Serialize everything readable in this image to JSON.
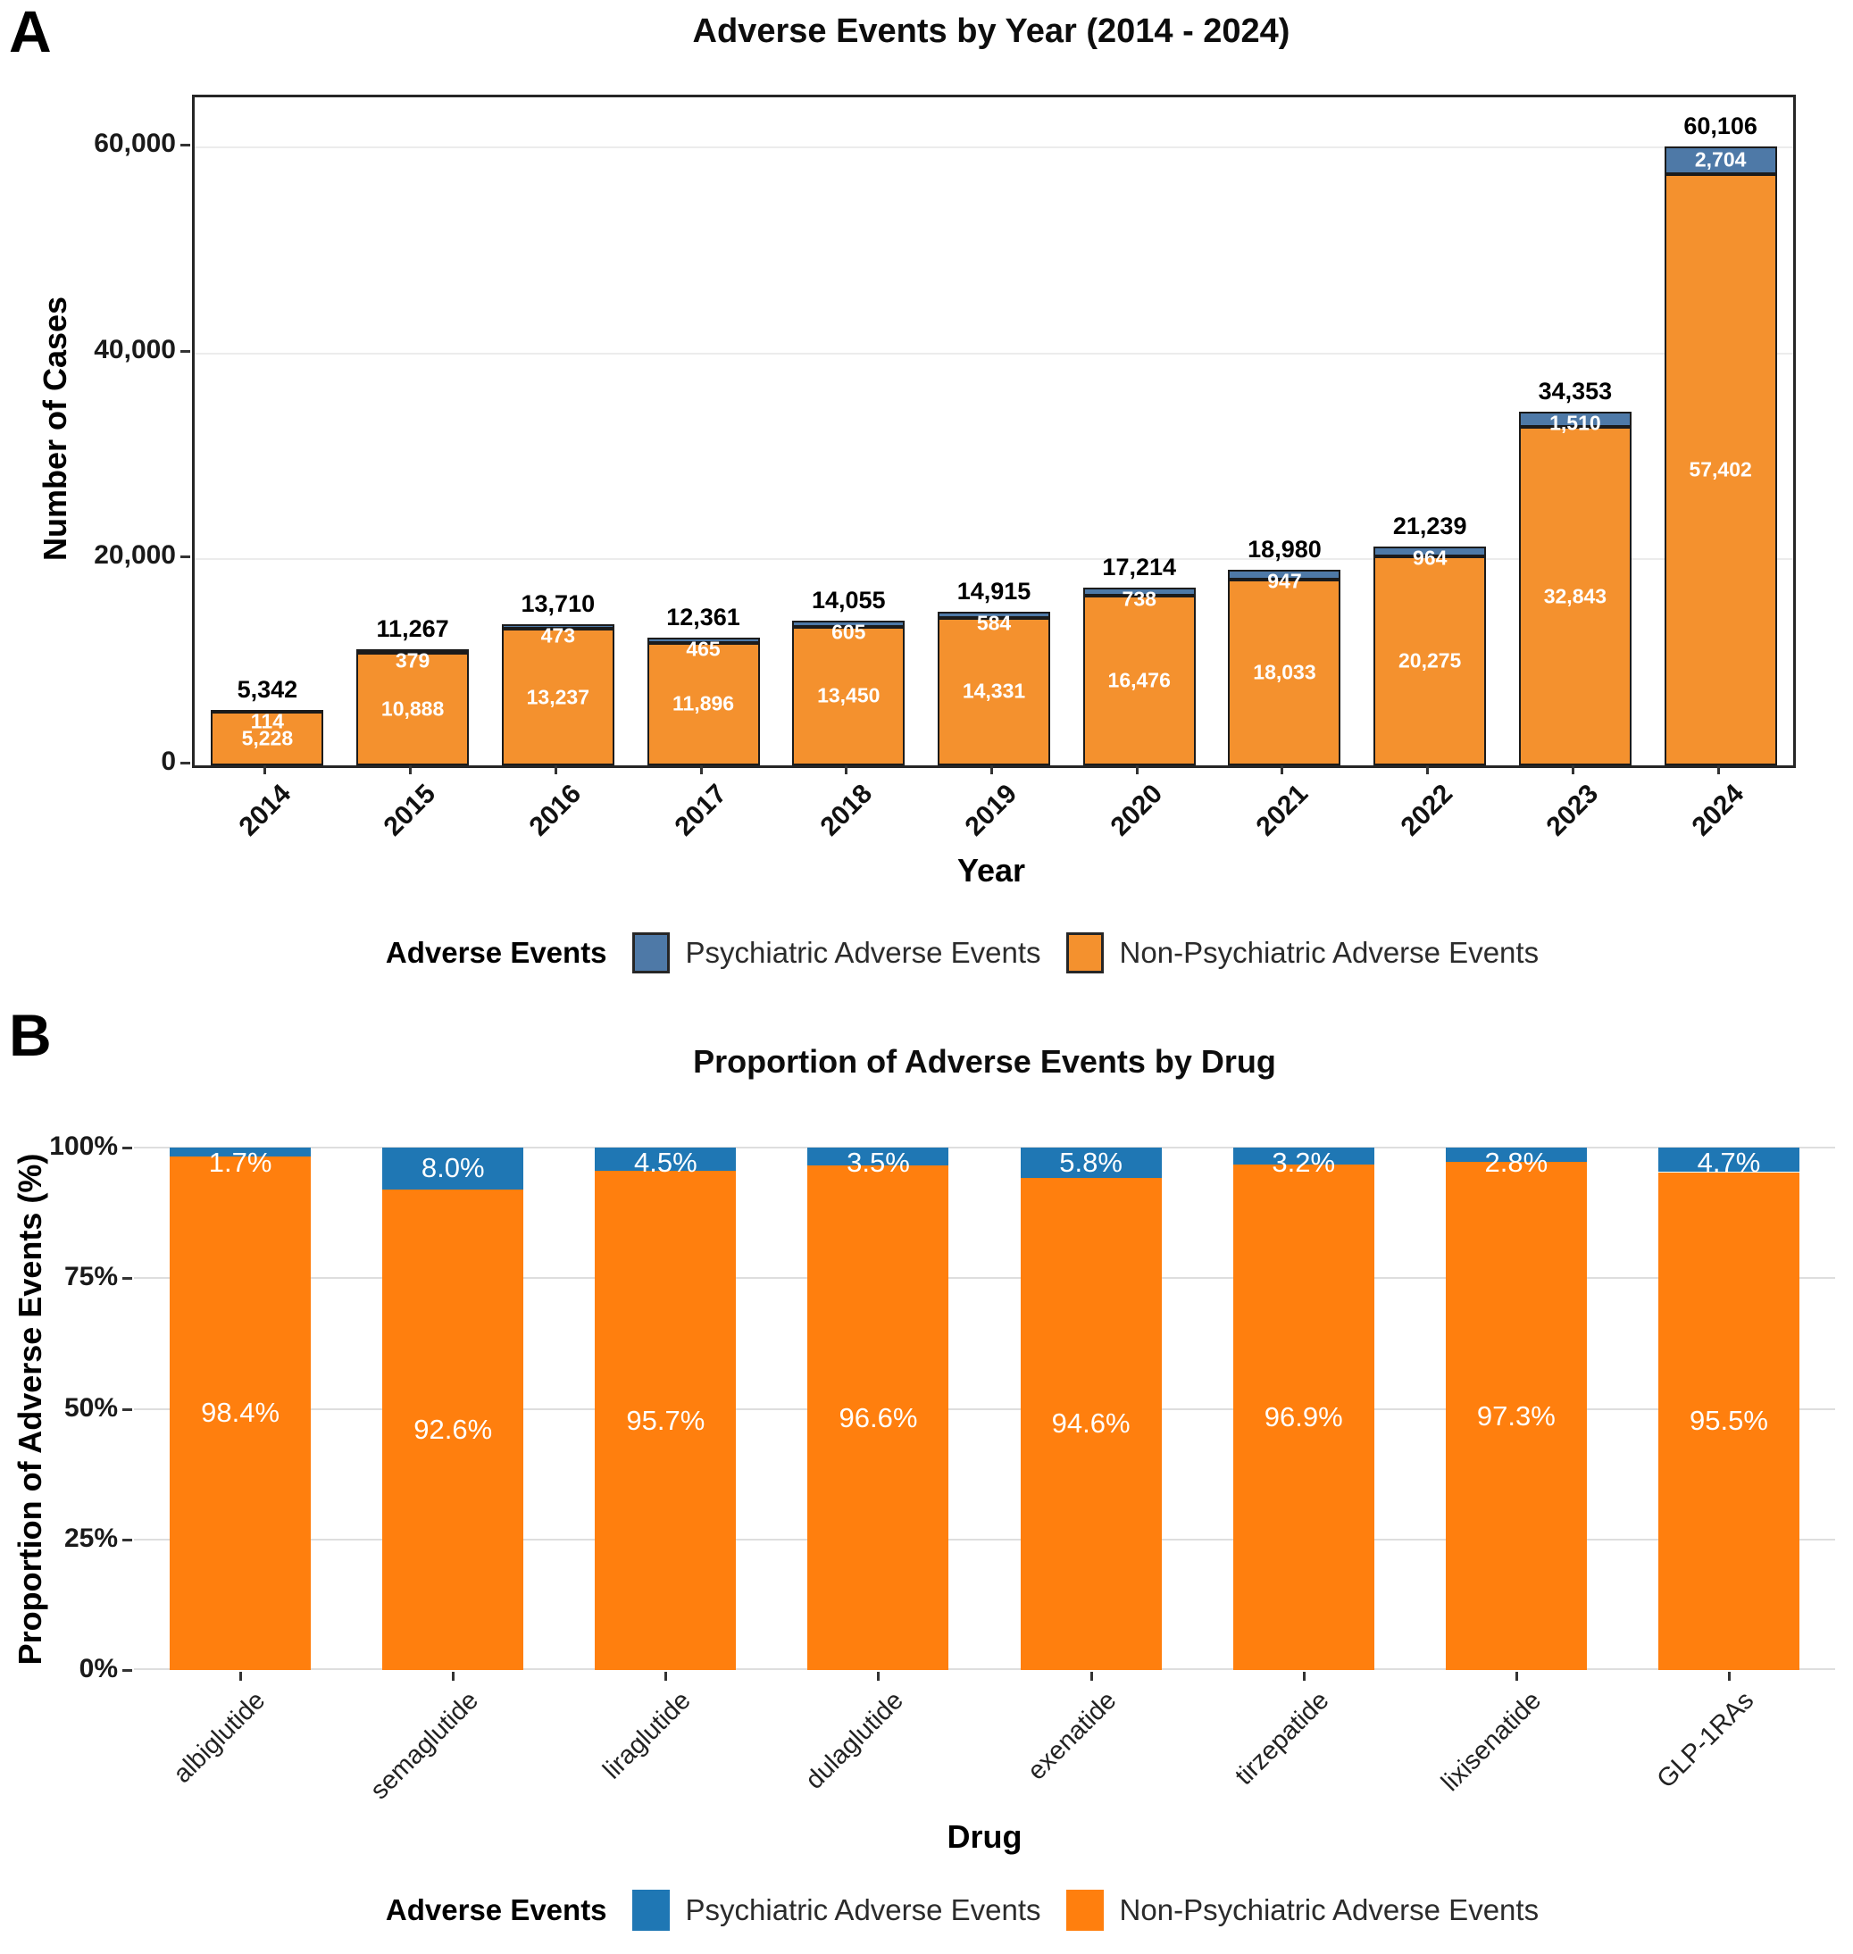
{
  "panel_a": {
    "letter": "A",
    "title": "Adverse Events by Year (2014 - 2024)",
    "xlabel": "Year",
    "ylabel": "Number of Cases",
    "legend_title": "Adverse Events"
  },
  "panel_b": {
    "letter": "B",
    "title": "Proportion of Adverse Events by Drug",
    "xlabel": "Drug",
    "ylabel": "Proportion of Adverse Events (%)",
    "legend_title": "Adverse Events"
  },
  "chart_data": [
    {
      "type": "bar",
      "stacked": true,
      "title": "Adverse Events by Year (2014 - 2024)",
      "xlabel": "Year",
      "ylabel": "Number of Cases",
      "categories": [
        "2014",
        "2015",
        "2016",
        "2017",
        "2018",
        "2019",
        "2020",
        "2021",
        "2022",
        "2023",
        "2024"
      ],
      "series": [
        {
          "name": "Psychiatric Adverse Events",
          "color": "#4E79A7",
          "values": [
            114,
            379,
            473,
            465,
            605,
            584,
            738,
            947,
            964,
            1510,
            2704
          ]
        },
        {
          "name": "Non-Psychiatric Adverse Events",
          "color": "#F4912E",
          "values": [
            5228,
            10888,
            13237,
            11896,
            13450,
            14331,
            16476,
            18033,
            20275,
            32843,
            57402
          ]
        }
      ],
      "totals": [
        5342,
        11267,
        13710,
        12361,
        14055,
        14915,
        17214,
        18980,
        21239,
        34353,
        60106
      ],
      "ylim": [
        0,
        64500
      ],
      "ytick_values": [
        0,
        20000,
        40000,
        60000
      ],
      "ytick_labels": [
        "0",
        "20,000",
        "40,000",
        "60,000"
      ],
      "grid": true,
      "legend_position": "bottom"
    },
    {
      "type": "bar",
      "stacked": true,
      "percent": true,
      "title": "Proportion of Adverse Events by Drug",
      "xlabel": "Drug",
      "ylabel": "Proportion of Adverse Events (%)",
      "categories": [
        "albiglutide",
        "semaglutide",
        "liraglutide",
        "dulaglutide",
        "exenatide",
        "tirzepatide",
        "lixisenatide",
        "GLP-1RAs"
      ],
      "series": [
        {
          "name": "Psychiatric Adverse Events",
          "color": "#1F77B4",
          "values": [
            1.7,
            8.0,
            4.5,
            3.5,
            5.8,
            3.2,
            2.8,
            4.7
          ]
        },
        {
          "name": "Non-Psychiatric Adverse Events",
          "color": "#FF7F0E",
          "values": [
            98.4,
            92.6,
            95.7,
            96.6,
            94.6,
            96.9,
            97.3,
            95.5
          ]
        }
      ],
      "ylim": [
        0,
        100
      ],
      "ytick_values": [
        0,
        25,
        50,
        75,
        100
      ],
      "ytick_labels": [
        "0%",
        "25%",
        "50%",
        "75%",
        "100%"
      ],
      "grid": true,
      "legend_position": "bottom"
    }
  ]
}
